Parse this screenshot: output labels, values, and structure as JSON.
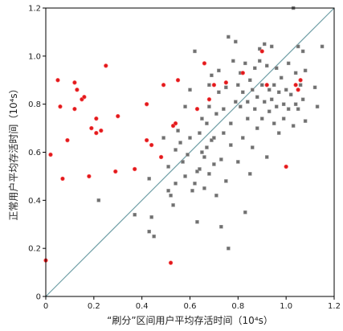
{
  "chart_data": {
    "type": "scatter",
    "xlabel": "“刷分”区间用户平均存活时间（10⁴s）",
    "ylabel": "正常用户平均存活时间（10⁴s）",
    "xlim": [
      0,
      1.2
    ],
    "ylim": [
      0,
      1.2
    ],
    "xticks": [
      "0",
      "0.2",
      "0.4",
      "0.6",
      "0.8",
      "1.0",
      "1.2"
    ],
    "yticks": [
      "0",
      "0.2",
      "0.4",
      "0.6",
      "0.8",
      "1.0",
      "1.2"
    ],
    "grid": false,
    "reference_line": {
      "from": [
        0,
        0
      ],
      "to": [
        1.2,
        1.2
      ],
      "color": "#6f9fa6"
    },
    "series": [
      {
        "color": "#e0191c",
        "points": [
          [
            0.0,
            0.15
          ],
          [
            0.02,
            0.59
          ],
          [
            0.05,
            0.9
          ],
          [
            0.06,
            0.79
          ],
          [
            0.07,
            0.49
          ],
          [
            0.09,
            0.65
          ],
          [
            0.12,
            0.78
          ],
          [
            0.12,
            0.89
          ],
          [
            0.13,
            0.86
          ],
          [
            0.15,
            0.82
          ],
          [
            0.16,
            0.83
          ],
          [
            0.18,
            0.5
          ],
          [
            0.19,
            0.7
          ],
          [
            0.21,
            0.68
          ],
          [
            0.21,
            0.74
          ],
          [
            0.23,
            0.69
          ],
          [
            0.25,
            0.96
          ],
          [
            0.29,
            0.52
          ],
          [
            0.3,
            0.75
          ],
          [
            0.37,
            0.53
          ],
          [
            0.42,
            0.65
          ],
          [
            0.42,
            0.8
          ],
          [
            0.44,
            0.63
          ],
          [
            0.48,
            0.58
          ],
          [
            0.49,
            0.88
          ],
          [
            0.52,
            0.14
          ],
          [
            0.53,
            0.71
          ],
          [
            0.54,
            0.72
          ],
          [
            0.55,
            0.9
          ],
          [
            0.63,
            0.78
          ],
          [
            0.66,
            0.97
          ],
          [
            0.68,
            0.82
          ],
          [
            0.7,
            0.88
          ],
          [
            0.75,
            0.89
          ],
          [
            0.82,
            0.93
          ],
          [
            0.9,
            1.02
          ],
          [
            0.92,
            0.88
          ],
          [
            1.0,
            0.54
          ],
          [
            1.04,
            0.88
          ],
          [
            1.05,
            0.86
          ],
          [
            1.06,
            0.9
          ]
        ]
      },
      {
        "color": "#707070",
        "points": [
          [
            0.22,
            0.4
          ],
          [
            0.37,
            0.34
          ],
          [
            0.43,
            0.27
          ],
          [
            0.43,
            0.49
          ],
          [
            0.44,
            0.33
          ],
          [
            0.45,
            0.25
          ],
          [
            0.49,
            0.66
          ],
          [
            0.51,
            0.54
          ],
          [
            0.51,
            0.44
          ],
          [
            0.52,
            0.42
          ],
          [
            0.53,
            0.38
          ],
          [
            0.54,
            0.47
          ],
          [
            0.54,
            0.61
          ],
          [
            0.55,
            0.69
          ],
          [
            0.56,
            0.64
          ],
          [
            0.57,
            0.56
          ],
          [
            0.58,
            0.5
          ],
          [
            0.59,
            0.59
          ],
          [
            0.6,
            0.66
          ],
          [
            0.61,
            0.44
          ],
          [
            0.62,
            0.47
          ],
          [
            0.62,
            1.02
          ],
          [
            0.63,
            0.31
          ],
          [
            0.63,
            0.52
          ],
          [
            0.64,
            0.53
          ],
          [
            0.64,
            0.68
          ],
          [
            0.65,
            0.6
          ],
          [
            0.65,
            0.74
          ],
          [
            0.66,
            0.45
          ],
          [
            0.66,
            0.58
          ],
          [
            0.67,
            0.62
          ],
          [
            0.67,
            0.72
          ],
          [
            0.68,
            0.51
          ],
          [
            0.68,
            0.79
          ],
          [
            0.69,
            0.65
          ],
          [
            0.69,
            0.92
          ],
          [
            0.7,
            0.55
          ],
          [
            0.7,
            0.66
          ],
          [
            0.71,
            0.42
          ],
          [
            0.71,
            0.76
          ],
          [
            0.72,
            0.85
          ],
          [
            0.72,
            0.94
          ],
          [
            0.73,
            0.29
          ],
          [
            0.73,
            0.57
          ],
          [
            0.74,
            0.68
          ],
          [
            0.74,
            0.78
          ],
          [
            0.75,
            0.48
          ],
          [
            0.75,
            0.87
          ],
          [
            0.76,
            1.08
          ],
          [
            0.77,
            0.63
          ],
          [
            0.77,
            0.72
          ],
          [
            0.78,
            0.98
          ],
          [
            0.79,
            0.81
          ],
          [
            0.79,
            1.06
          ],
          [
            0.8,
            0.56
          ],
          [
            0.8,
            0.88
          ],
          [
            0.81,
            0.79
          ],
          [
            0.81,
            0.93
          ],
          [
            0.82,
            0.66
          ],
          [
            0.82,
            0.85
          ],
          [
            0.83,
            0.97
          ],
          [
            0.84,
            0.74
          ],
          [
            0.84,
            0.81
          ],
          [
            0.85,
            0.51
          ],
          [
            0.85,
            0.9
          ],
          [
            0.86,
            0.62
          ],
          [
            0.86,
            0.86
          ],
          [
            0.87,
            0.78
          ],
          [
            0.87,
            0.95
          ],
          [
            0.88,
            0.83
          ],
          [
            0.88,
            0.7
          ],
          [
            0.89,
            0.98
          ],
          [
            0.89,
            1.03
          ],
          [
            0.9,
            0.74
          ],
          [
            0.9,
            0.88
          ],
          [
            0.91,
            0.81
          ],
          [
            0.91,
            1.05
          ],
          [
            0.92,
            0.58
          ],
          [
            0.92,
            0.96
          ],
          [
            0.93,
            0.86
          ],
          [
            0.93,
            0.77
          ],
          [
            0.94,
            0.82
          ],
          [
            0.94,
            1.04
          ],
          [
            0.95,
            0.72
          ],
          [
            0.95,
            0.88
          ],
          [
            0.96,
            0.79
          ],
          [
            0.96,
            0.95
          ],
          [
            0.97,
            0.68
          ],
          [
            0.97,
            0.85
          ],
          [
            0.98,
            0.91
          ],
          [
            0.99,
            0.8
          ],
          [
            0.99,
            0.74
          ],
          [
            1.0,
            0.86
          ],
          [
            1.01,
            0.97
          ],
          [
            1.01,
            0.78
          ],
          [
            1.02,
            0.84
          ],
          [
            1.03,
            0.71
          ],
          [
            1.03,
            1.2
          ],
          [
            1.04,
            0.93
          ],
          [
            1.04,
            0.8
          ],
          [
            1.05,
            0.78
          ],
          [
            1.05,
            1.04
          ],
          [
            1.06,
            0.88
          ],
          [
            1.07,
            1.02
          ],
          [
            1.07,
            0.82
          ],
          [
            1.08,
            0.73
          ],
          [
            1.08,
            0.94
          ],
          [
            1.12,
            0.87
          ],
          [
            1.13,
            0.79
          ],
          [
            1.15,
            1.04
          ],
          [
            0.76,
            0.2
          ],
          [
            0.83,
            0.35
          ],
          [
            0.58,
            0.79
          ],
          [
            0.6,
            0.86
          ],
          [
            0.68,
            0.88
          ]
        ]
      }
    ]
  }
}
